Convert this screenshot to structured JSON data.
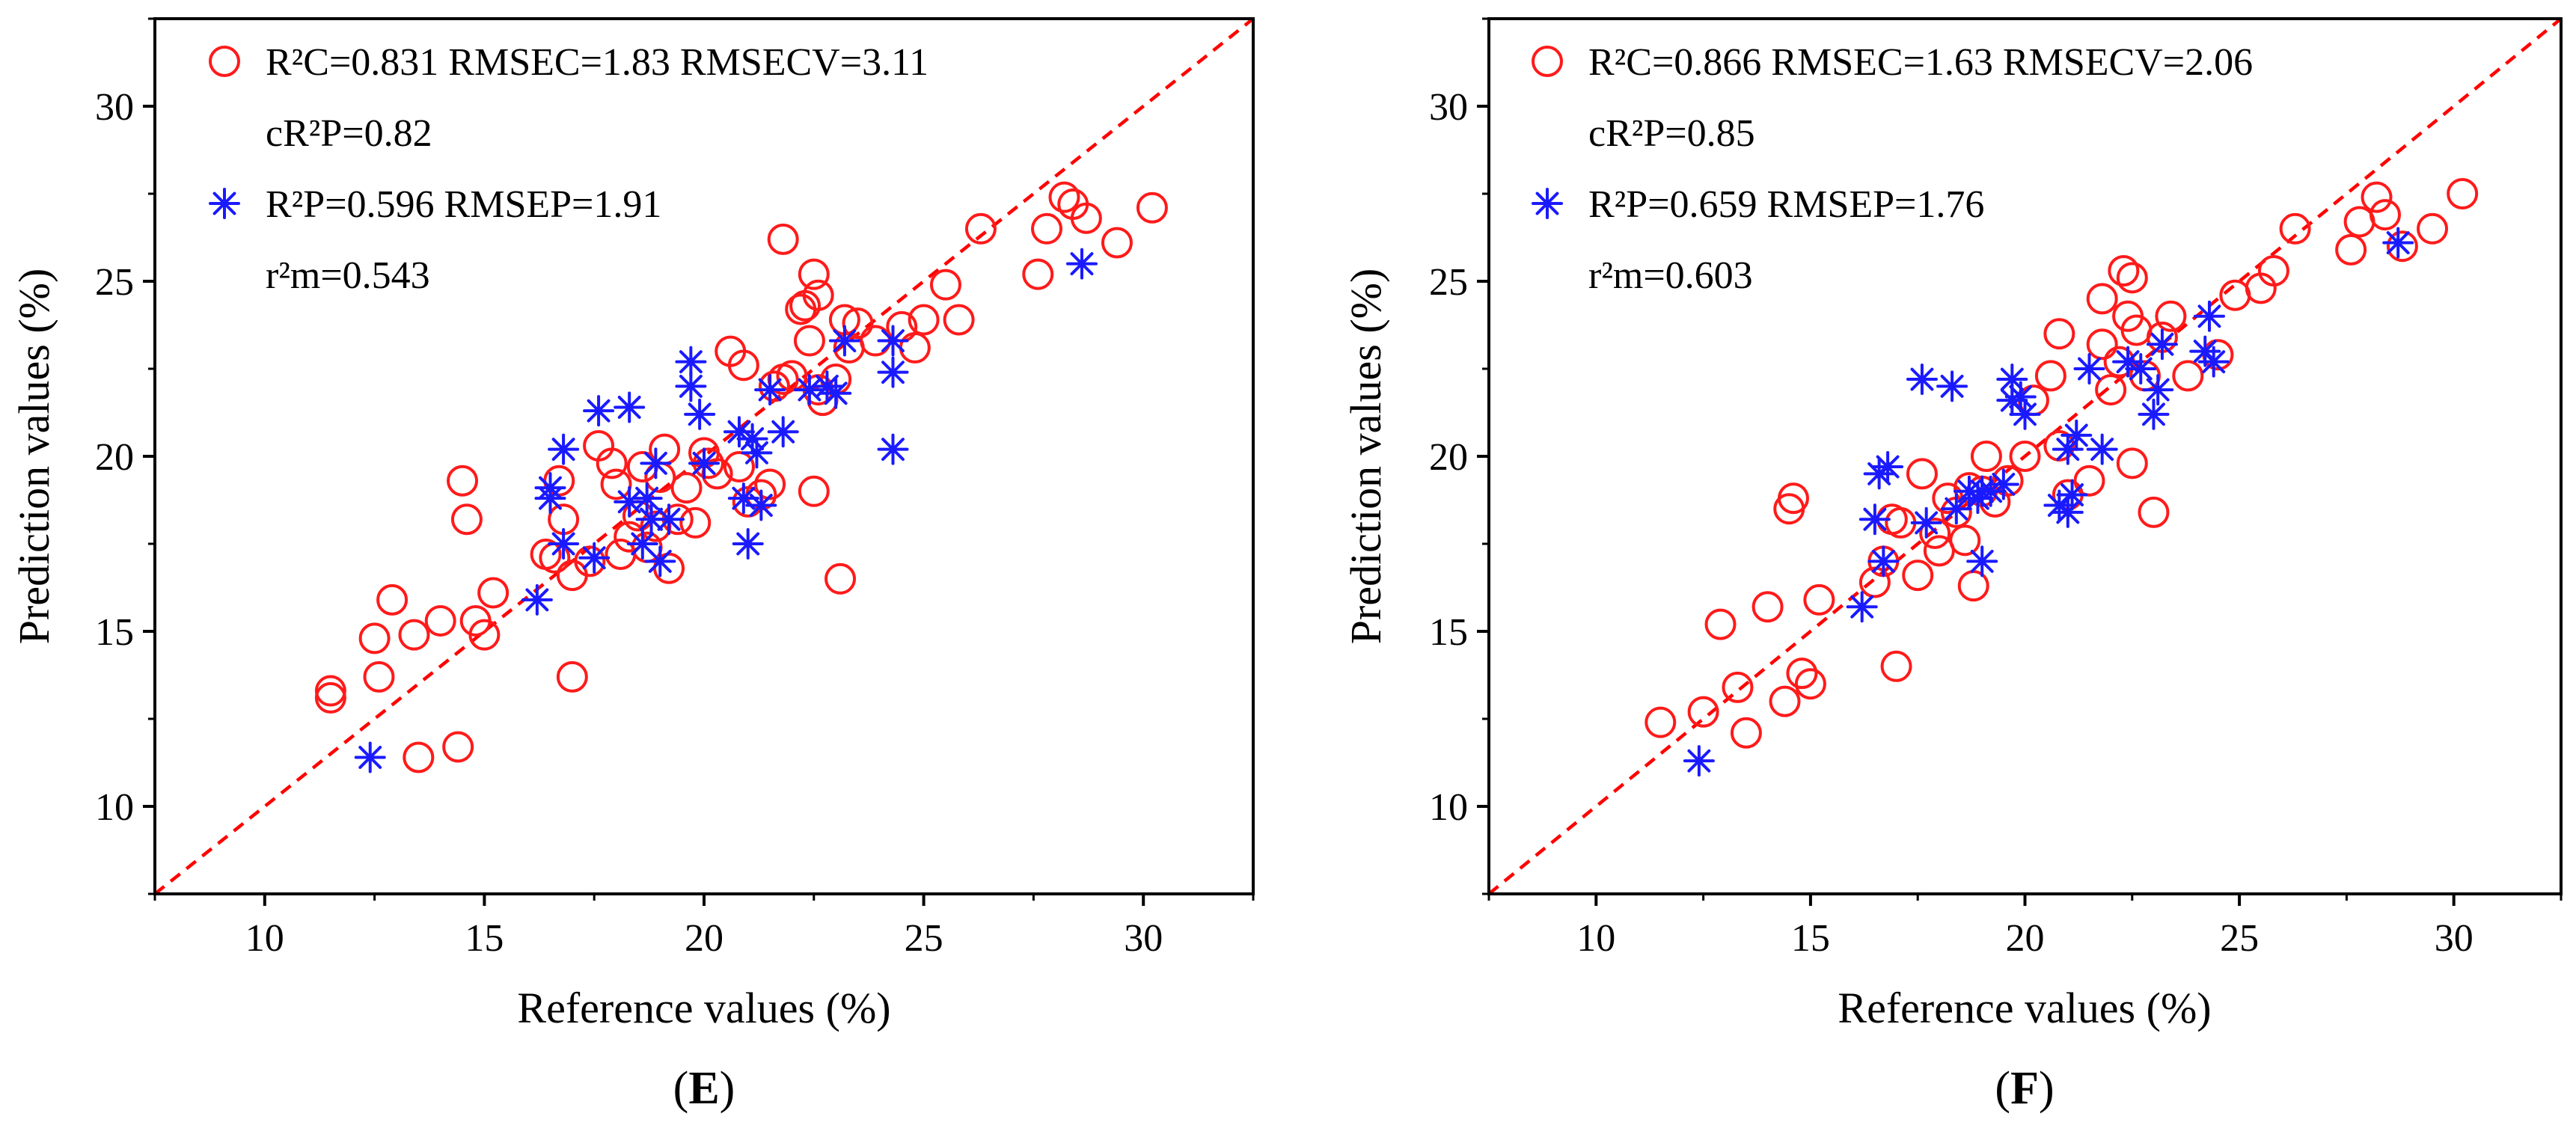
{
  "colors": {
    "calibration": "#ff1a1a",
    "prediction": "#1a1aff",
    "identity_line": "#ff0000",
    "axes": "#000000"
  },
  "chart_data": [
    {
      "type": "scatter",
      "panel_label": "E",
      "xlabel": "Reference values (%)",
      "ylabel": "Prediction values (%)",
      "xlim": [
        7.5,
        32.5
      ],
      "ylim": [
        7.5,
        32.5
      ],
      "xticks": [
        10,
        15,
        20,
        25,
        30
      ],
      "yticks": [
        10,
        15,
        20,
        25,
        30
      ],
      "grid": false,
      "legend_position": "top-left",
      "identity_line": true,
      "legend": {
        "calibration_lines": [
          "R²C=0.831 RMSEC=1.83 RMSECV=3.11",
          "cR²P=0.82"
        ],
        "prediction_lines": [
          "R²P=0.596 RMSEP=1.91",
          "r²m=0.543"
        ]
      },
      "series": [
        {
          "marker": "circle",
          "points": [
            [
              11.5,
              13.1
            ],
            [
              11.5,
              13.3
            ],
            [
              12.5,
              14.8
            ],
            [
              12.6,
              13.7
            ],
            [
              12.9,
              15.9
            ],
            [
              13.4,
              14.9
            ],
            [
              13.5,
              11.4
            ],
            [
              14.0,
              15.3
            ],
            [
              14.4,
              11.7
            ],
            [
              14.5,
              19.3
            ],
            [
              14.6,
              18.2
            ],
            [
              14.8,
              15.3
            ],
            [
              15.0,
              14.9
            ],
            [
              15.2,
              16.1
            ],
            [
              16.4,
              17.2
            ],
            [
              16.6,
              17.1
            ],
            [
              16.7,
              19.3
            ],
            [
              16.8,
              18.2
            ],
            [
              17.0,
              13.7
            ],
            [
              17.0,
              16.6
            ],
            [
              17.4,
              17.0
            ],
            [
              17.6,
              20.3
            ],
            [
              17.9,
              19.8
            ],
            [
              18.0,
              19.2
            ],
            [
              18.1,
              17.2
            ],
            [
              18.3,
              17.7
            ],
            [
              18.5,
              18.3
            ],
            [
              18.6,
              19.7
            ],
            [
              18.7,
              17.4
            ],
            [
              18.9,
              18.0
            ],
            [
              19.0,
              19.4
            ],
            [
              19.1,
              20.2
            ],
            [
              19.2,
              16.8
            ],
            [
              19.4,
              18.2
            ],
            [
              19.6,
              19.1
            ],
            [
              19.8,
              18.1
            ],
            [
              20.0,
              20.1
            ],
            [
              20.1,
              19.8
            ],
            [
              20.3,
              19.5
            ],
            [
              20.6,
              23.0
            ],
            [
              20.8,
              19.7
            ],
            [
              20.9,
              22.6
            ],
            [
              21.0,
              18.7
            ],
            [
              21.3,
              18.9
            ],
            [
              21.5,
              19.2
            ],
            [
              21.6,
              22.0
            ],
            [
              21.8,
              22.2
            ],
            [
              21.8,
              26.2
            ],
            [
              22.0,
              22.3
            ],
            [
              22.2,
              24.2
            ],
            [
              22.3,
              24.3
            ],
            [
              22.4,
              23.3
            ],
            [
              22.5,
              25.2
            ],
            [
              22.5,
              19.0
            ],
            [
              22.6,
              24.6
            ],
            [
              22.6,
              21.9
            ],
            [
              22.7,
              21.6
            ],
            [
              23.0,
              22.2
            ],
            [
              23.1,
              16.5
            ],
            [
              23.2,
              23.9
            ],
            [
              23.3,
              23.1
            ],
            [
              23.5,
              23.8
            ],
            [
              23.9,
              23.3
            ],
            [
              24.5,
              23.7
            ],
            [
              24.8,
              23.1
            ],
            [
              25.0,
              23.9
            ],
            [
              25.5,
              24.9
            ],
            [
              25.8,
              23.9
            ],
            [
              26.3,
              26.5
            ],
            [
              27.6,
              25.2
            ],
            [
              27.8,
              26.5
            ],
            [
              28.2,
              27.4
            ],
            [
              28.4,
              27.2
            ],
            [
              28.7,
              26.8
            ],
            [
              29.4,
              26.1
            ],
            [
              30.2,
              27.1
            ]
          ]
        },
        {
          "marker": "asterisk",
          "points": [
            [
              12.4,
              11.4
            ],
            [
              16.2,
              15.9
            ],
            [
              16.5,
              19.1
            ],
            [
              16.5,
              18.8
            ],
            [
              16.8,
              17.5
            ],
            [
              16.8,
              20.2
            ],
            [
              17.5,
              17.1
            ],
            [
              17.6,
              21.3
            ],
            [
              18.3,
              21.4
            ],
            [
              18.3,
              18.7
            ],
            [
              18.6,
              17.5
            ],
            [
              18.7,
              18.8
            ],
            [
              18.8,
              18.2
            ],
            [
              18.9,
              19.8
            ],
            [
              19.0,
              17.0
            ],
            [
              19.2,
              18.2
            ],
            [
              19.7,
              22.0
            ],
            [
              19.7,
              22.7
            ],
            [
              19.9,
              21.2
            ],
            [
              20.0,
              19.8
            ],
            [
              20.8,
              20.7
            ],
            [
              20.9,
              18.8
            ],
            [
              21.0,
              17.5
            ],
            [
              21.1,
              20.5
            ],
            [
              21.2,
              20.1
            ],
            [
              21.3,
              18.6
            ],
            [
              21.5,
              21.9
            ],
            [
              21.8,
              20.7
            ],
            [
              22.4,
              21.9
            ],
            [
              22.8,
              22.0
            ],
            [
              23.0,
              21.8
            ],
            [
              23.2,
              23.3
            ],
            [
              24.3,
              22.4
            ],
            [
              24.3,
              23.3
            ],
            [
              24.3,
              20.2
            ],
            [
              28.6,
              25.5
            ]
          ]
        }
      ]
    },
    {
      "type": "scatter",
      "panel_label": "F",
      "xlabel": "Reference values (%)",
      "ylabel": "Prediction values (%)",
      "xlim": [
        7.5,
        32.5
      ],
      "ylim": [
        7.5,
        32.5
      ],
      "xticks": [
        10,
        15,
        20,
        25,
        30
      ],
      "yticks": [
        10,
        15,
        20,
        25,
        30
      ],
      "grid": false,
      "legend_position": "top-left",
      "identity_line": true,
      "legend": {
        "calibration_lines": [
          "R²C=0.866 RMSEC=1.63 RMSECV=2.06",
          "cR²P=0.85"
        ],
        "prediction_lines": [
          "R²P=0.659 RMSEP=1.76",
          "r²m=0.603"
        ]
      },
      "series": [
        {
          "marker": "circle",
          "points": [
            [
              11.5,
              12.4
            ],
            [
              12.5,
              12.7
            ],
            [
              12.9,
              15.2
            ],
            [
              13.3,
              13.4
            ],
            [
              13.5,
              12.1
            ],
            [
              14.0,
              15.7
            ],
            [
              14.4,
              13.0
            ],
            [
              14.5,
              18.5
            ],
            [
              14.6,
              18.8
            ],
            [
              14.8,
              13.8
            ],
            [
              15.0,
              13.5
            ],
            [
              15.2,
              15.9
            ],
            [
              16.5,
              16.4
            ],
            [
              16.7,
              17.0
            ],
            [
              16.9,
              18.2
            ],
            [
              17.0,
              14.0
            ],
            [
              17.1,
              18.1
            ],
            [
              17.5,
              16.6
            ],
            [
              17.6,
              19.5
            ],
            [
              17.9,
              17.8
            ],
            [
              18.0,
              17.3
            ],
            [
              18.2,
              18.8
            ],
            [
              18.4,
              18.4
            ],
            [
              18.6,
              17.6
            ],
            [
              18.7,
              19.1
            ],
            [
              18.8,
              16.3
            ],
            [
              19.0,
              19.0
            ],
            [
              19.1,
              20.0
            ],
            [
              19.3,
              18.7
            ],
            [
              19.6,
              19.3
            ],
            [
              20.0,
              20.0
            ],
            [
              20.2,
              21.6
            ],
            [
              20.6,
              22.3
            ],
            [
              20.8,
              20.3
            ],
            [
              20.8,
              23.5
            ],
            [
              21.0,
              18.9
            ],
            [
              21.5,
              19.3
            ],
            [
              21.8,
              23.2
            ],
            [
              21.8,
              24.5
            ],
            [
              22.0,
              21.9
            ],
            [
              22.2,
              22.7
            ],
            [
              22.3,
              25.3
            ],
            [
              22.4,
              24.0
            ],
            [
              22.5,
              25.1
            ],
            [
              22.5,
              19.8
            ],
            [
              22.6,
              23.6
            ],
            [
              22.8,
              22.3
            ],
            [
              23.0,
              18.4
            ],
            [
              23.2,
              23.4
            ],
            [
              23.4,
              24.0
            ],
            [
              23.8,
              22.3
            ],
            [
              24.5,
              22.9
            ],
            [
              24.9,
              24.6
            ],
            [
              25.5,
              24.8
            ],
            [
              25.8,
              25.3
            ],
            [
              26.3,
              26.5
            ],
            [
              27.6,
              25.9
            ],
            [
              27.8,
              26.7
            ],
            [
              28.2,
              27.4
            ],
            [
              28.4,
              26.9
            ],
            [
              28.8,
              26.0
            ],
            [
              29.5,
              26.5
            ],
            [
              30.2,
              27.5
            ]
          ]
        },
        {
          "marker": "asterisk",
          "points": [
            [
              12.4,
              11.3
            ],
            [
              16.2,
              15.7
            ],
            [
              16.5,
              18.2
            ],
            [
              16.6,
              19.5
            ],
            [
              16.7,
              17.0
            ],
            [
              16.8,
              19.7
            ],
            [
              17.6,
              22.2
            ],
            [
              17.7,
              18.1
            ],
            [
              18.3,
              22.0
            ],
            [
              18.4,
              18.5
            ],
            [
              18.7,
              19.0
            ],
            [
              18.9,
              18.8
            ],
            [
              19.0,
              19.0
            ],
            [
              19.0,
              17.0
            ],
            [
              19.2,
              19.0
            ],
            [
              19.5,
              19.2
            ],
            [
              19.7,
              21.6
            ],
            [
              19.7,
              22.2
            ],
            [
              19.9,
              21.7
            ],
            [
              20.0,
              21.2
            ],
            [
              20.8,
              18.6
            ],
            [
              21.0,
              20.2
            ],
            [
              21.0,
              18.4
            ],
            [
              21.1,
              18.9
            ],
            [
              21.2,
              20.6
            ],
            [
              21.5,
              22.5
            ],
            [
              21.8,
              20.2
            ],
            [
              22.4,
              22.7
            ],
            [
              22.7,
              22.5
            ],
            [
              23.0,
              21.2
            ],
            [
              23.1,
              21.9
            ],
            [
              23.2,
              23.2
            ],
            [
              24.2,
              23.0
            ],
            [
              24.3,
              24.0
            ],
            [
              24.4,
              22.7
            ],
            [
              28.7,
              26.1
            ]
          ]
        }
      ]
    }
  ]
}
